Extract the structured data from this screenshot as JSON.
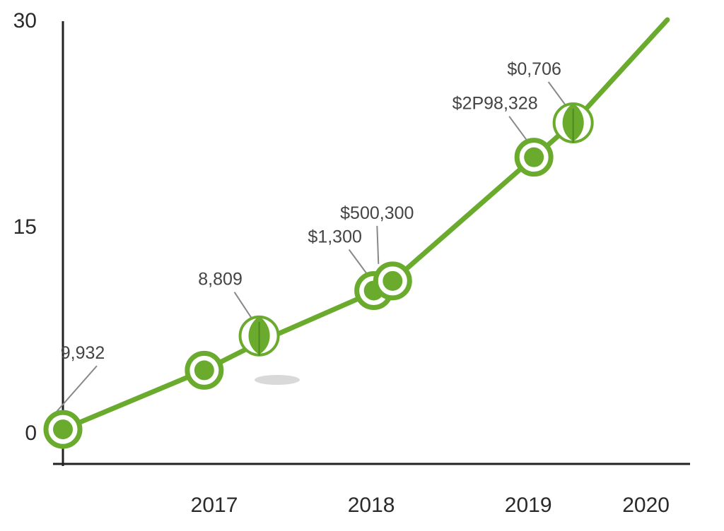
{
  "chart_data": {
    "type": "line",
    "title": "",
    "xlabel": "",
    "ylabel": "",
    "x_ticks": [
      "2017",
      "2018",
      "2019",
      "2020"
    ],
    "y_ticks": [
      "0",
      "15",
      "30"
    ],
    "ylim": [
      0,
      30
    ],
    "xlim": [
      2016.1,
      2020.0
    ],
    "grid": false,
    "line_color": "#6aab2e",
    "series": [
      {
        "points": [
          {
            "x": 2016.1,
            "y": 0.2
          },
          {
            "x": 2017.0,
            "y": 4.5
          },
          {
            "x": 2017.4,
            "y": 6.8
          },
          {
            "x": 2018.1,
            "y": 10.3
          },
          {
            "x": 2018.2,
            "y": 11.0
          },
          {
            "x": 2019.1,
            "y": 20.0
          },
          {
            "x": 2019.35,
            "y": 22.5
          },
          {
            "x": 2019.95,
            "y": 30.0
          }
        ]
      }
    ],
    "markers": [
      {
        "x": 2016.1,
        "y": 0.2,
        "style": "ring",
        "label": "9,932"
      },
      {
        "x": 2017.0,
        "y": 4.5,
        "style": "ring",
        "label": ""
      },
      {
        "x": 2017.35,
        "y": 7.0,
        "style": "leaf",
        "label": "8,809"
      },
      {
        "x": 2018.08,
        "y": 10.3,
        "style": "ring",
        "label": "$1,300"
      },
      {
        "x": 2018.2,
        "y": 11.0,
        "style": "ring",
        "label": "$500,300"
      },
      {
        "x": 2019.1,
        "y": 20.0,
        "style": "ring",
        "label": "$2P98,328"
      },
      {
        "x": 2019.35,
        "y": 22.5,
        "style": "leaf",
        "label": "$0,706"
      }
    ]
  }
}
